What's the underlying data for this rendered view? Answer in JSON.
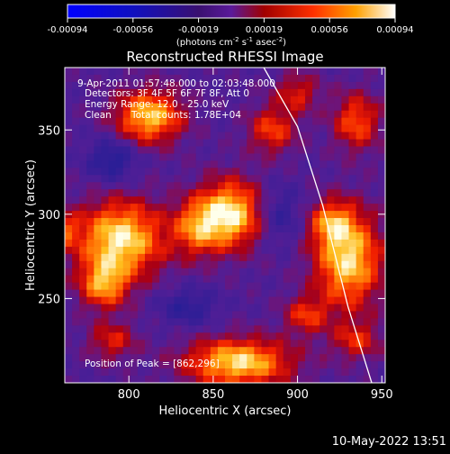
{
  "chart_data": {
    "type": "heatmap",
    "title": "Reconstructed RHESSI Image",
    "xlabel": "Heliocentric X (arcsec)",
    "ylabel": "Heliocentric Y (arcsec)",
    "xlim": [
      762,
      952
    ],
    "ylim": [
      200,
      387
    ],
    "xticks": [
      800,
      850,
      900,
      950
    ],
    "yticks": [
      250,
      300,
      350
    ],
    "colorbar": {
      "min": -0.00094,
      "max": 0.00094,
      "ticks": [
        "-0.00094",
        "-0.00056",
        "-0.00019",
        "0.00019",
        "0.00056",
        "0.00094"
      ],
      "units_label": "(photons cm",
      "units_exp1": "-2",
      "units_mid": " s",
      "units_exp2": "-1",
      "units_mid2": " asec",
      "units_exp3": "-2",
      "units_end": ")"
    },
    "annotations": {
      "time_range": "9-Apr-2011 01:57:48.000 to 02:03:48.000",
      "detectors": "Detectors: 3F 4F 5F 6F 7F 8F, Att 0",
      "energy": "Energy Range: 12.0 - 25.0 keV",
      "method": "Clean",
      "counts": "Total counts: 1.78E+04",
      "peak": "Position of Peak = [862,296]"
    },
    "sources": [
      {
        "x": 795,
        "y": 285,
        "sx": 18,
        "sy": 16,
        "amp": 1.0
      },
      {
        "x": 785,
        "y": 258,
        "sx": 10,
        "sy": 10,
        "amp": 0.7
      },
      {
        "x": 860,
        "y": 300,
        "sx": 13,
        "sy": 14,
        "amp": 1.0
      },
      {
        "x": 840,
        "y": 292,
        "sx": 10,
        "sy": 12,
        "amp": 0.6
      },
      {
        "x": 812,
        "y": 358,
        "sx": 14,
        "sy": 11,
        "amp": 0.9
      },
      {
        "x": 865,
        "y": 212,
        "sx": 22,
        "sy": 10,
        "amp": 0.95
      },
      {
        "x": 930,
        "y": 273,
        "sx": 14,
        "sy": 20,
        "amp": 0.95
      },
      {
        "x": 920,
        "y": 295,
        "sx": 9,
        "sy": 9,
        "amp": 0.55
      },
      {
        "x": 905,
        "y": 240,
        "sx": 9,
        "sy": 8,
        "amp": 0.5
      },
      {
        "x": 885,
        "y": 350,
        "sx": 10,
        "sy": 10,
        "amp": 0.55
      },
      {
        "x": 900,
        "y": 372,
        "sx": 9,
        "sy": 8,
        "amp": 0.45
      },
      {
        "x": 935,
        "y": 355,
        "sx": 10,
        "sy": 12,
        "amp": 0.6
      },
      {
        "x": 790,
        "y": 225,
        "sx": 10,
        "sy": 8,
        "amp": 0.45
      },
      {
        "x": 760,
        "y": 290,
        "sx": 7,
        "sy": 8,
        "amp": 0.5
      },
      {
        "x": 935,
        "y": 225,
        "sx": 10,
        "sy": 8,
        "amp": 0.45
      },
      {
        "x": 835,
        "y": 245,
        "sx": 12,
        "sy": 8,
        "amp": -0.35
      },
      {
        "x": 790,
        "y": 332,
        "sx": 10,
        "sy": 9,
        "amp": -0.45
      },
      {
        "x": 890,
        "y": 300,
        "sx": 9,
        "sy": 12,
        "amp": -0.3
      }
    ],
    "limb_curve": [
      {
        "x": 880,
        "y": 387
      },
      {
        "x": 900,
        "y": 352
      },
      {
        "x": 915,
        "y": 305
      },
      {
        "x": 930,
        "y": 245
      },
      {
        "x": 944,
        "y": 200
      }
    ]
  },
  "footer": {
    "date": "10-May-2022 13:51"
  }
}
